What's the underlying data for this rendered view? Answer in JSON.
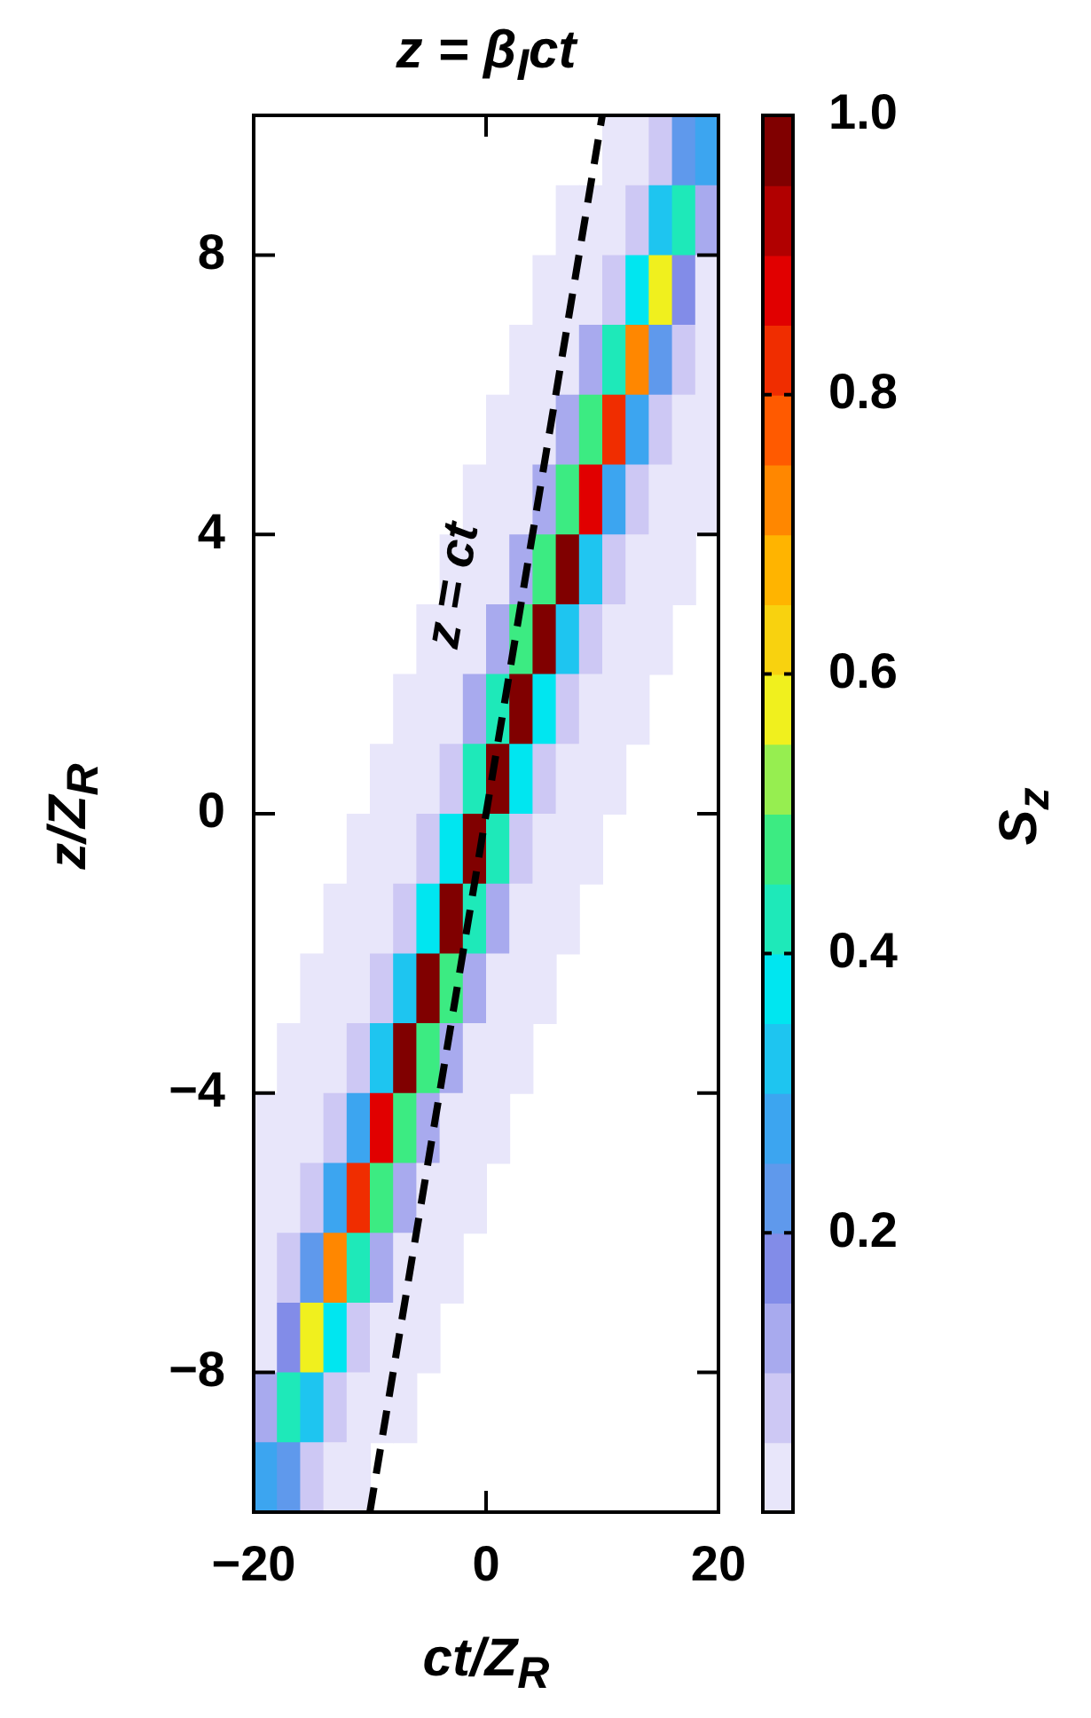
{
  "chart_data": {
    "type": "heatmap",
    "title": "z = β$_{I}$ct",
    "xlabel": "ct/Z$_{R}$",
    "ylabel": "z/Z$_{R}$",
    "clabel": "S$_{z}$",
    "xlim": [
      -20,
      20
    ],
    "ylim": [
      -10,
      10
    ],
    "xticks": [
      {
        "value": -20,
        "label": "−20"
      },
      0,
      20
    ],
    "yticks": [
      {
        "value": -8,
        "label": "−8"
      },
      {
        "value": -4,
        "label": "−4"
      },
      0,
      4,
      8
    ],
    "clim": [
      0,
      1
    ],
    "cticks": [
      0.2,
      0.4,
      0.6,
      0.8,
      {
        "value": 1,
        "label": "1.0"
      }
    ],
    "annotations": [
      "z = ct"
    ],
    "series": [
      {
        "type": "line",
        "x": [
          -10,
          10
        ],
        "values": [
          -10,
          10
        ],
        "color": "#000000",
        "line_style": "dashed"
      }
    ],
    "cells": [
      [
        null,
        null,
        null,
        null,
        null,
        null,
        null,
        null,
        null,
        null,
        null,
        null,
        null,
        null,
        null,
        0.01,
        0.02,
        0.06,
        0.23,
        0.29
      ],
      [
        null,
        null,
        null,
        null,
        null,
        null,
        null,
        null,
        null,
        null,
        null,
        null,
        null,
        0.01,
        0.01,
        0.03,
        0.09,
        0.31,
        0.44,
        0.13
      ],
      [
        null,
        null,
        null,
        null,
        null,
        null,
        null,
        null,
        null,
        null,
        null,
        null,
        0.01,
        0.02,
        0.03,
        0.1,
        0.38,
        0.59,
        0.17,
        0.05
      ],
      [
        null,
        null,
        null,
        null,
        null,
        null,
        null,
        null,
        null,
        null,
        null,
        0.01,
        0.02,
        0.04,
        0.12,
        0.45,
        0.74,
        0.22,
        0.06,
        0.03
      ],
      [
        null,
        null,
        null,
        null,
        null,
        null,
        null,
        null,
        null,
        null,
        0.01,
        0.02,
        0.05,
        0.13,
        0.48,
        0.85,
        0.26,
        0.07,
        0.03,
        0.02
      ],
      [
        null,
        null,
        null,
        null,
        null,
        null,
        null,
        null,
        null,
        0.01,
        0.02,
        0.05,
        0.12,
        0.48,
        0.9,
        0.29,
        0.08,
        0.03,
        0.02,
        0.01
      ],
      [
        null,
        null,
        null,
        null,
        null,
        null,
        null,
        null,
        0.01,
        0.02,
        0.05,
        0.12,
        0.48,
        0.97,
        0.33,
        0.09,
        0.04,
        0.02,
        0.01,
        null
      ],
      [
        null,
        null,
        null,
        null,
        null,
        null,
        null,
        0.01,
        0.02,
        0.04,
        0.11,
        0.46,
        0.98,
        0.35,
        0.09,
        0.04,
        0.02,
        0.01,
        null,
        null
      ],
      [
        null,
        null,
        null,
        null,
        null,
        null,
        0.01,
        0.02,
        0.04,
        0.11,
        0.44,
        0.99,
        0.38,
        0.1,
        0.04,
        0.02,
        0.01,
        null,
        null,
        null
      ],
      [
        null,
        null,
        null,
        null,
        null,
        0.01,
        0.02,
        0.04,
        0.1,
        0.41,
        1,
        0.39,
        0.1,
        0.04,
        0.02,
        0.01,
        null,
        null,
        null,
        null
      ],
      [
        null,
        null,
        null,
        null,
        0.01,
        0.02,
        0.04,
        0.1,
        0.39,
        1,
        0.41,
        0.1,
        0.04,
        0.02,
        0.01,
        null,
        null,
        null,
        null,
        null
      ],
      [
        null,
        null,
        null,
        0.01,
        0.02,
        0.04,
        0.1,
        0.38,
        0.99,
        0.44,
        0.11,
        0.04,
        0.02,
        0.01,
        null,
        null,
        null,
        null,
        null,
        null
      ],
      [
        null,
        null,
        0.01,
        0.02,
        0.04,
        0.09,
        0.35,
        0.98,
        0.46,
        0.11,
        0.04,
        0.02,
        0.01,
        null,
        null,
        null,
        null,
        null,
        null,
        null
      ],
      [
        null,
        0.01,
        0.02,
        0.04,
        0.09,
        0.33,
        0.97,
        0.48,
        0.12,
        0.05,
        0.02,
        0.01,
        null,
        null,
        null,
        null,
        null,
        null,
        null,
        null
      ],
      [
        0.01,
        0.02,
        0.03,
        0.08,
        0.29,
        0.9,
        0.48,
        0.12,
        0.05,
        0.02,
        0.01,
        null,
        null,
        null,
        null,
        null,
        null,
        null,
        null,
        null
      ],
      [
        0.02,
        0.03,
        0.07,
        0.26,
        0.85,
        0.48,
        0.13,
        0.05,
        0.02,
        0.01,
        null,
        null,
        null,
        null,
        null,
        null,
        null,
        null,
        null,
        null
      ],
      [
        0.03,
        0.06,
        0.22,
        0.74,
        0.45,
        0.12,
        0.04,
        0.02,
        0.01,
        null,
        null,
        null,
        null,
        null,
        null,
        null,
        null,
        null,
        null,
        null
      ],
      [
        0.05,
        0.17,
        0.59,
        0.38,
        0.1,
        0.03,
        0.02,
        0.01,
        null,
        null,
        null,
        null,
        null,
        null,
        null,
        null,
        null,
        null,
        null,
        null
      ],
      [
        0.13,
        0.44,
        0.31,
        0.09,
        0.03,
        0.01,
        0.01,
        null,
        null,
        null,
        null,
        null,
        null,
        null,
        null,
        null,
        null,
        null,
        null,
        null
      ],
      [
        0.29,
        0.23,
        0.06,
        0.02,
        0.01,
        null,
        null,
        null,
        null,
        null,
        null,
        null,
        null,
        null,
        null,
        null,
        null,
        null,
        null,
        null
      ]
    ]
  }
}
